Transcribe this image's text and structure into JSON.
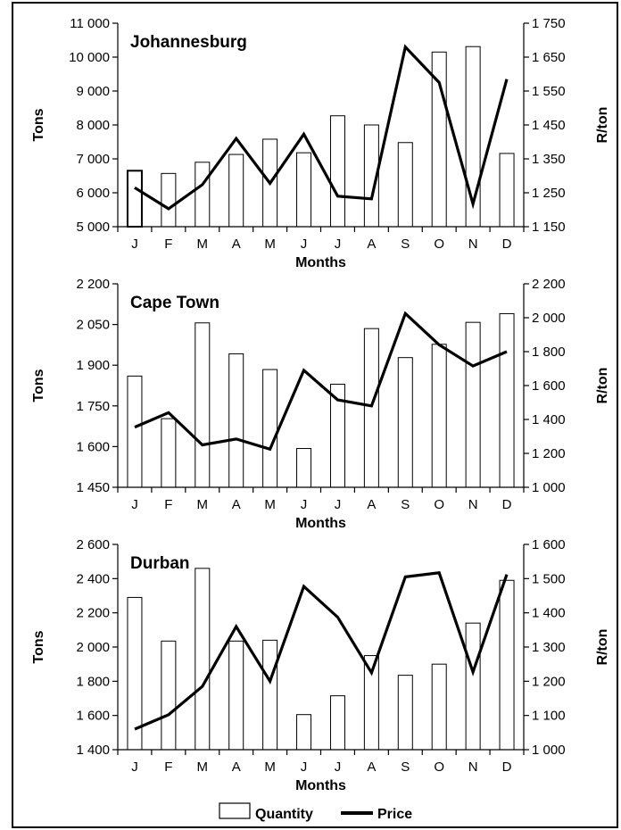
{
  "chart_data": [
    {
      "type": "bar+line",
      "title": "Johannesburg",
      "xlabel": "Months",
      "ylabel": "Tons",
      "y2label": "R/ton",
      "categories": [
        "J",
        "F",
        "M",
        "A",
        "M",
        "J",
        "J",
        "A",
        "S",
        "O",
        "N",
        "D"
      ],
      "ylim": [
        5000,
        11000
      ],
      "yticks": [
        5000,
        6000,
        7000,
        8000,
        9000,
        10000,
        11000
      ],
      "yticklabels": [
        "5 000",
        "6 000",
        "7 000",
        "8 000",
        "9 000",
        "10 000",
        "11 000"
      ],
      "y2lim": [
        1150,
        1750
      ],
      "y2ticks": [
        1150,
        1250,
        1350,
        1450,
        1550,
        1650,
        1750
      ],
      "y2ticklabels": [
        "1 150",
        "1 250",
        "1 350",
        "1 450",
        "1 550",
        "1 650",
        "1 750"
      ],
      "series": [
        {
          "name": "Quantity",
          "type": "bar",
          "axis": "left",
          "values": [
            6650,
            6570,
            6900,
            7130,
            7580,
            7180,
            8270,
            8000,
            7480,
            10150,
            10310,
            7160
          ]
        },
        {
          "name": "Price",
          "type": "line",
          "axis": "right",
          "values": [
            1265,
            1203,
            1274,
            1410,
            1278,
            1423,
            1240,
            1232,
            1680,
            1575,
            1217,
            1585
          ]
        }
      ]
    },
    {
      "type": "bar+line",
      "title": "Cape Town",
      "xlabel": "Months",
      "ylabel": "Tons",
      "y2label": "R/ton",
      "categories": [
        "J",
        "F",
        "M",
        "A",
        "M",
        "J",
        "J",
        "A",
        "S",
        "O",
        "N",
        "D"
      ],
      "ylim": [
        1450,
        2200
      ],
      "yticks": [
        1450,
        1600,
        1750,
        1900,
        2050,
        2200
      ],
      "yticklabels": [
        "1 450",
        "1 600",
        "1 750",
        "1 900",
        "2 050",
        "2 200"
      ],
      "y2lim": [
        1000,
        2200
      ],
      "y2ticks": [
        1000,
        1200,
        1400,
        1600,
        1800,
        2000,
        2200
      ],
      "y2ticklabels": [
        "1 000",
        "1 200",
        "1 400",
        "1 600",
        "1 800",
        "2 000",
        "2 200"
      ],
      "series": [
        {
          "name": "Quantity",
          "type": "bar",
          "axis": "left",
          "values": [
            1860,
            1703,
            2056,
            1942,
            1884,
            1593,
            1830,
            2035,
            1928,
            1977,
            2058,
            2090
          ]
        },
        {
          "name": "Price",
          "type": "line",
          "axis": "right",
          "values": [
            1355,
            1440,
            1250,
            1285,
            1225,
            1690,
            1515,
            1480,
            2025,
            1840,
            1715,
            1800
          ]
        }
      ]
    },
    {
      "type": "bar+line",
      "title": "Durban",
      "xlabel": "Months",
      "ylabel": "Tons",
      "y2label": "R/ton",
      "categories": [
        "J",
        "F",
        "M",
        "A",
        "M",
        "J",
        "J",
        "A",
        "S",
        "O",
        "N",
        "D"
      ],
      "ylim": [
        1400,
        2600
      ],
      "yticks": [
        1400,
        1600,
        1800,
        2000,
        2200,
        2400,
        2600
      ],
      "yticklabels": [
        "1 400",
        "1 600",
        "1 800",
        "2 000",
        "2 200",
        "2 400",
        "2 600"
      ],
      "y2lim": [
        1000,
        1600
      ],
      "y2ticks": [
        1000,
        1100,
        1200,
        1300,
        1400,
        1500,
        1600
      ],
      "y2ticklabels": [
        "1 000",
        "1 100",
        "1 200",
        "1 300",
        "1 400",
        "1 500",
        "1 600"
      ],
      "series": [
        {
          "name": "Quantity",
          "type": "bar",
          "axis": "left",
          "values": [
            2290,
            2035,
            2460,
            2035,
            2040,
            1605,
            1715,
            1950,
            1835,
            1900,
            2140,
            2390
          ]
        },
        {
          "name": "Price",
          "type": "line",
          "axis": "right",
          "values": [
            1060,
            1102,
            1185,
            1360,
            1200,
            1477,
            1387,
            1225,
            1505,
            1517,
            1227,
            1512
          ]
        }
      ]
    }
  ],
  "legend": {
    "quantity_label": "Quantity",
    "price_label": "Price"
  }
}
